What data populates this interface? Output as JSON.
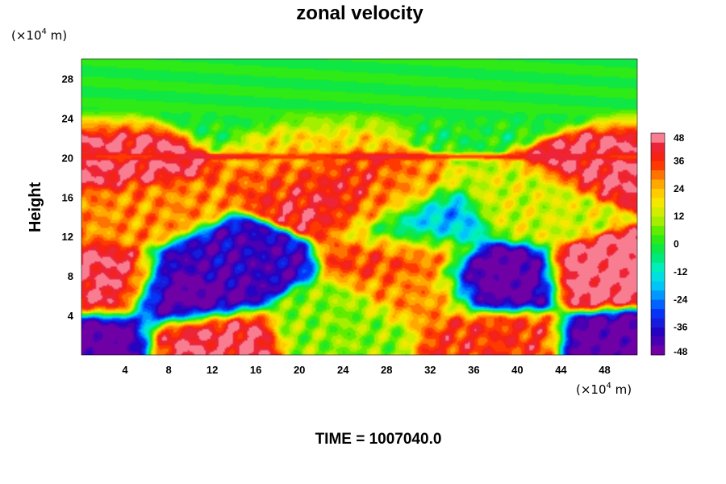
{
  "chart_data": {
    "type": "heatmap",
    "title": "zonal velocity",
    "ylabel": "Height",
    "y_unit_prefix": "(×10",
    "y_unit_exp": "4",
    "y_unit_suffix": " m)",
    "x_unit_prefix": "(×10",
    "x_unit_exp": "4",
    "x_unit_suffix": " m)",
    "xlim": [
      0,
      51
    ],
    "ylim": [
      0,
      30
    ],
    "x_ticks": [
      4,
      8,
      12,
      16,
      20,
      24,
      28,
      32,
      36,
      40,
      44,
      48
    ],
    "y_ticks": [
      4,
      8,
      12,
      16,
      20,
      24,
      28
    ],
    "colorbar": {
      "min": -48,
      "max": 48,
      "step": 4,
      "tick_values": [
        48,
        36,
        24,
        12,
        0,
        -12,
        -24,
        -36,
        -48
      ]
    },
    "time_label": "TIME = 1007040.0",
    "field_features": [
      {
        "x": 14,
        "y": 25,
        "value": 0
      },
      {
        "x": 40,
        "y": 26,
        "value": 0
      },
      {
        "x": 20,
        "y": 21.5,
        "value": 20
      },
      {
        "x": 4,
        "y": 20,
        "value": 44
      },
      {
        "x": 48.5,
        "y": 19.3,
        "value": 44
      },
      {
        "x": 23,
        "y": 16.5,
        "value": 44
      },
      {
        "x": 21,
        "y": 18,
        "value": 32
      },
      {
        "x": 6,
        "y": 14.5,
        "value": 28
      },
      {
        "x": 27,
        "y": 15.5,
        "value": 28
      },
      {
        "x": 42,
        "y": 15,
        "value": 14
      },
      {
        "x": 30,
        "y": 10.5,
        "value": 36
      },
      {
        "x": 31,
        "y": 6.5,
        "value": 28
      },
      {
        "x": 13,
        "y": 9.5,
        "value": -40
      },
      {
        "x": 9.5,
        "y": 6,
        "value": -48
      },
      {
        "x": 38,
        "y": 7.5,
        "value": -48
      },
      {
        "x": 31,
        "y": 12.8,
        "value": -22
      },
      {
        "x": 2,
        "y": 7,
        "value": 44
      },
      {
        "x": 48.5,
        "y": 8,
        "value": 48
      },
      {
        "x": 11.5,
        "y": 1.5,
        "value": 44
      },
      {
        "x": 38,
        "y": 1.5,
        "value": 36
      },
      {
        "x": 1,
        "y": 1.2,
        "value": -48
      },
      {
        "x": 50,
        "y": 1.2,
        "value": -48
      },
      {
        "x": 24,
        "y": 3,
        "value": 8
      }
    ]
  }
}
